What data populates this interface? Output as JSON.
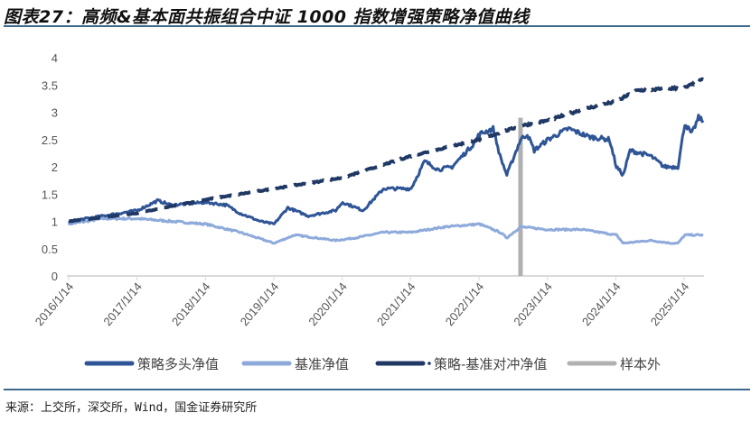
{
  "title": "图表27：高频&基本面共振组合中证 1000 指数增强策略净值曲线",
  "source": "来源：上交所，深交所，Wind，国金证券研究所",
  "chart_data": {
    "type": "line",
    "title": "图表27：高频&基本面共振组合中证 1000 指数增强策略净值曲线",
    "xlabel": "",
    "ylabel": "",
    "ylim": [
      0,
      4
    ],
    "yticks": [
      "0",
      "0.5",
      "1",
      "1.5",
      "2",
      "2.5",
      "3",
      "3.5",
      "4"
    ],
    "xlim": [
      2016.0,
      2025.3
    ],
    "xticks": [
      "2016/1/14",
      "2017/1/14",
      "2018/1/14",
      "2019/1/14",
      "2020/1/14",
      "2021/1/14",
      "2022/1/14",
      "2023/1/14",
      "2024/1/14",
      "2025/1/14"
    ],
    "legend_position": "bottom",
    "series": [
      {
        "name": "策略多头净值",
        "color": "#2f5597",
        "style": "solid",
        "x": [
          2016.0,
          2016.5,
          2017.0,
          2017.3,
          2017.5,
          2018.0,
          2018.3,
          2018.5,
          2018.8,
          2019.0,
          2019.2,
          2019.5,
          2019.9,
          2020.0,
          2020.3,
          2020.6,
          2020.9,
          2021.0,
          2021.2,
          2021.4,
          2021.6,
          2021.9,
          2022.0,
          2022.2,
          2022.3,
          2022.4,
          2022.6,
          2022.7,
          2022.8,
          2023.0,
          2023.3,
          2023.6,
          2023.9,
          2024.0,
          2024.1,
          2024.2,
          2024.5,
          2024.7,
          2024.9,
          2025.0,
          2025.1,
          2025.2,
          2025.27
        ],
        "values": [
          1.0,
          1.1,
          1.2,
          1.38,
          1.3,
          1.35,
          1.3,
          1.15,
          1.0,
          0.95,
          1.25,
          1.1,
          1.2,
          1.35,
          1.2,
          1.6,
          1.6,
          1.6,
          2.1,
          1.95,
          2.0,
          2.4,
          2.6,
          2.7,
          2.2,
          1.85,
          2.5,
          2.6,
          2.3,
          2.5,
          2.7,
          2.55,
          2.5,
          2.0,
          1.85,
          2.3,
          2.2,
          2.0,
          2.0,
          2.8,
          2.6,
          2.9,
          2.85
        ]
      },
      {
        "name": "基准净值",
        "color": "#8eaadb",
        "style": "solid",
        "x": [
          2016.0,
          2016.5,
          2017.0,
          2017.5,
          2018.0,
          2018.5,
          2019.0,
          2019.3,
          2019.9,
          2020.2,
          2020.6,
          2021.0,
          2021.5,
          2022.0,
          2022.3,
          2022.4,
          2022.6,
          2023.0,
          2023.5,
          2024.0,
          2024.1,
          2024.5,
          2024.8,
          2024.9,
          2025.0,
          2025.27
        ],
        "values": [
          0.95,
          1.05,
          1.05,
          1.0,
          0.95,
          0.8,
          0.6,
          0.75,
          0.65,
          0.7,
          0.8,
          0.8,
          0.9,
          0.95,
          0.8,
          0.7,
          0.9,
          0.85,
          0.85,
          0.75,
          0.6,
          0.65,
          0.6,
          0.6,
          0.75,
          0.75
        ]
      },
      {
        "name": "策略-基准对冲净值",
        "color": "#1f3864",
        "style": "dashed",
        "x": [
          2016.0,
          2017.0,
          2018.0,
          2019.0,
          2020.0,
          2021.0,
          2022.0,
          2022.6,
          2023.0,
          2023.5,
          2024.0,
          2024.3,
          2025.0,
          2025.27
        ],
        "values": [
          1.0,
          1.15,
          1.4,
          1.6,
          1.8,
          2.2,
          2.5,
          2.75,
          2.85,
          3.05,
          3.2,
          3.4,
          3.45,
          3.6
        ]
      },
      {
        "name": "样本外",
        "color": "#b0b0b0",
        "style": "bar",
        "x": [
          2022.6
        ],
        "values": [
          2.9
        ]
      }
    ]
  }
}
